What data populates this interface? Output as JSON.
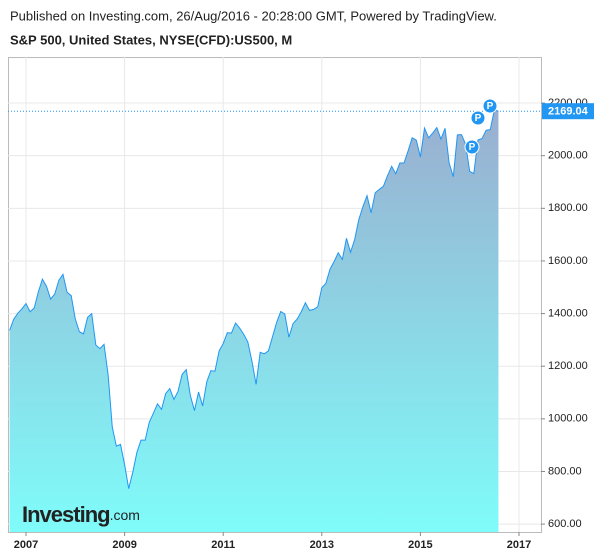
{
  "publisher": "Published on Investing.com, 26/Aug/2016 - 20:28:00 GMT, Powered by TradingView.",
  "chart_data": {
    "type": "area",
    "title": "S&P 500, United States, NYSE(CFD):US500, M",
    "color": "#2196f3",
    "grid": true,
    "x": [
      2006.667,
      2006.75,
      2006.833,
      2006.917,
      2007,
      2007.083,
      2007.167,
      2007.25,
      2007.333,
      2007.417,
      2007.5,
      2007.583,
      2007.667,
      2007.75,
      2007.833,
      2007.917,
      2008,
      2008.083,
      2008.167,
      2008.25,
      2008.333,
      2008.417,
      2008.5,
      2008.583,
      2008.667,
      2008.75,
      2008.833,
      2008.917,
      2009,
      2009.083,
      2009.167,
      2009.25,
      2009.333,
      2009.417,
      2009.5,
      2009.583,
      2009.667,
      2009.75,
      2009.833,
      2009.917,
      2010,
      2010.083,
      2010.167,
      2010.25,
      2010.333,
      2010.417,
      2010.5,
      2010.583,
      2010.667,
      2010.75,
      2010.833,
      2010.917,
      2011,
      2011.083,
      2011.167,
      2011.25,
      2011.333,
      2011.417,
      2011.5,
      2011.583,
      2011.667,
      2011.75,
      2011.833,
      2011.917,
      2012,
      2012.083,
      2012.167,
      2012.25,
      2012.333,
      2012.417,
      2012.5,
      2012.583,
      2012.667,
      2012.75,
      2012.833,
      2012.917,
      2013,
      2013.083,
      2013.167,
      2013.25,
      2013.333,
      2013.417,
      2013.5,
      2013.583,
      2013.667,
      2013.75,
      2013.833,
      2013.917,
      2014,
      2014.083,
      2014.167,
      2014.25,
      2014.333,
      2014.417,
      2014.5,
      2014.583,
      2014.667,
      2014.75,
      2014.833,
      2014.917,
      2015,
      2015.083,
      2015.167,
      2015.25,
      2015.333,
      2015.417,
      2015.5,
      2015.583,
      2015.667,
      2015.75,
      2015.833,
      2015.917,
      2016,
      2016.083,
      2016.167,
      2016.25,
      2016.333,
      2016.417,
      2016.5,
      2016.583
    ],
    "values": [
      1336,
      1378,
      1401,
      1418,
      1438,
      1407,
      1421,
      1482,
      1531,
      1503,
      1455,
      1474,
      1527,
      1549,
      1481,
      1468,
      1379,
      1331,
      1323,
      1386,
      1400,
      1280,
      1267,
      1283,
      1165,
      969,
      896,
      903,
      826,
      735,
      798,
      873,
      919,
      919,
      987,
      1021,
      1057,
      1036,
      1096,
      1115,
      1074,
      1104,
      1169,
      1187,
      1089,
      1031,
      1102,
      1049,
      1141,
      1183,
      1181,
      1258,
      1286,
      1327,
      1326,
      1364,
      1345,
      1321,
      1292,
      1219,
      1131,
      1253,
      1247,
      1258,
      1312,
      1366,
      1408,
      1398,
      1310,
      1362,
      1379,
      1407,
      1441,
      1412,
      1416,
      1426,
      1498,
      1515,
      1569,
      1598,
      1631,
      1606,
      1686,
      1633,
      1682,
      1757,
      1806,
      1848,
      1783,
      1859,
      1872,
      1884,
      1924,
      1960,
      1931,
      1972,
      1972,
      2018,
      2068,
      2059,
      1995,
      2105,
      2068,
      2086,
      2107,
      2063,
      2104,
      1972,
      1920,
      2079,
      2080,
      2044,
      1940,
      1932,
      2060,
      2065,
      2097,
      2099,
      2174,
      2169
    ],
    "xlim": [
      2006.635,
      2017.446
    ],
    "xticks": [
      2007,
      2009,
      2011,
      2013,
      2015,
      2017
    ],
    "ylim": [
      570,
      2375
    ],
    "yticks": [
      {
        "value": 600,
        "label": "600.00"
      },
      {
        "value": 800,
        "label": "800.00"
      },
      {
        "value": 1000,
        "label": "1000.00"
      },
      {
        "value": 1200,
        "label": "1200.00"
      },
      {
        "value": 1400,
        "label": "1400.00"
      },
      {
        "value": 1600,
        "label": "1600.00"
      },
      {
        "value": 1800,
        "label": "1800.00"
      },
      {
        "value": 2000,
        "label": "2000.00"
      },
      {
        "value": 2200,
        "label": "2200.00"
      }
    ],
    "last_price": 2169.04,
    "logo": {
      "brand": "Investing",
      "suffix": ".com"
    }
  }
}
